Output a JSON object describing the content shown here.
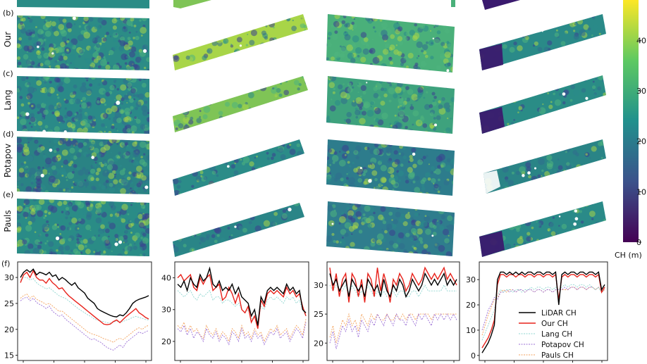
{
  "rows": [
    {
      "letter": "(b)",
      "name": "Our"
    },
    {
      "letter": "(c)",
      "name": "Lang"
    },
    {
      "letter": "(d)",
      "name": "Potapov"
    },
    {
      "letter": "(e)",
      "name": "Pauls"
    }
  ],
  "colorbar": {
    "label": "CH (m)",
    "ticks": [
      "0",
      "10",
      "20",
      "30",
      "40"
    ],
    "range": [
      0,
      48
    ],
    "colors": [
      "#440154",
      "#3b528b",
      "#21908d",
      "#5dc962",
      "#fde725"
    ]
  },
  "profile_panel_label": "(f)",
  "map_colors": {
    "low": "#3b3f8f",
    "mid": "#2a8a8a",
    "high": "#a8d548",
    "gap": "#ffffff"
  },
  "chart_data": [
    {
      "type": "line",
      "ylim": [
        14,
        33
      ],
      "yticks": [
        "15",
        "20",
        "25",
        "30"
      ],
      "x": [
        0,
        1,
        2,
        3,
        4,
        5,
        6,
        7,
        8,
        9,
        10,
        11,
        12,
        13,
        14,
        15,
        16,
        17,
        18,
        19,
        20,
        21,
        22,
        23,
        24,
        25,
        26,
        27,
        28,
        29,
        30,
        31,
        32,
        33,
        34,
        35,
        36,
        37,
        38,
        39,
        40
      ],
      "series": [
        {
          "name": "LiDAR CH",
          "color": "#000000",
          "values": [
            30,
            31,
            31.5,
            31,
            31.6,
            30.5,
            31,
            30.8,
            30.5,
            31,
            30.2,
            30.5,
            29.5,
            30,
            29.6,
            29,
            28.5,
            29,
            28,
            27.5,
            27,
            26,
            25.5,
            25,
            24,
            23.6,
            23.3,
            23,
            22.7,
            22.5,
            22.4,
            22.8,
            22.6,
            23.2,
            24,
            25,
            25.5,
            25.8,
            26,
            26.2,
            26.5
          ]
        },
        {
          "name": "Our CH",
          "color": "#e8221b",
          "values": [
            29,
            30.5,
            31,
            30,
            31.3,
            30,
            29.5,
            29.5,
            28.9,
            29.8,
            29,
            28.5,
            27.8,
            28,
            27.2,
            26.5,
            26,
            25.5,
            25,
            24.5,
            24,
            23.5,
            23,
            22.5,
            22,
            21.5,
            21,
            20.9,
            21,
            21.5,
            21.8,
            21.3,
            21.9,
            22.5,
            23,
            23.5,
            24,
            23.2,
            22.8,
            22.3,
            22
          ]
        },
        {
          "name": "Lang CH",
          "color": "#8fd6d0",
          "values": [
            29.5,
            30,
            30,
            29.5,
            29.8,
            29,
            28.5,
            28.2,
            27.8,
            28,
            27.5,
            27,
            26.5,
            26.2,
            26,
            25.5,
            25,
            24.5,
            24,
            23.6,
            23.2,
            22.8,
            22.5,
            22,
            21.8,
            21.6,
            21.5,
            21.3,
            21.2,
            21.4,
            21.6,
            21.4,
            21.5,
            21.8,
            22,
            22.3,
            22.5,
            22.3,
            22.1,
            21.9,
            21.8
          ]
        },
        {
          "name": "Potapov CH",
          "color": "#9b6fd6",
          "values": [
            25.5,
            26,
            26.2,
            25.5,
            26,
            25.2,
            24.8,
            24.5,
            24,
            24.5,
            23.5,
            23,
            22.5,
            22.8,
            22,
            21.5,
            21,
            20.5,
            20,
            19.5,
            19,
            18.5,
            18,
            18.2,
            17.8,
            17.5,
            17,
            16.5,
            16.2,
            16,
            16.5,
            17,
            16.5,
            17.5,
            18,
            18.5,
            19,
            19.5,
            19.2,
            19.5,
            19.8
          ]
        },
        {
          "name": "Pauls CH",
          "color": "#f3a25c",
          "values": [
            26,
            26.5,
            26.8,
            26,
            26.5,
            25.8,
            25.5,
            25.2,
            24.8,
            25,
            24.5,
            24,
            23.5,
            23.5,
            23,
            22.5,
            22,
            21.5,
            21,
            20.5,
            20,
            19.5,
            19.2,
            19,
            18.8,
            18.5,
            18.2,
            18,
            17.8,
            17.5,
            18,
            18.3,
            18,
            18.5,
            19,
            19.5,
            20,
            20.3,
            20,
            20.5,
            20.8
          ]
        }
      ]
    },
    {
      "type": "line",
      "ylim": [
        14,
        45
      ],
      "yticks": [
        "20",
        "30",
        "40"
      ],
      "x": [
        0,
        1,
        2,
        3,
        4,
        5,
        6,
        7,
        8,
        9,
        10,
        11,
        12,
        13,
        14,
        15,
        16,
        17,
        18,
        19,
        20,
        21,
        22,
        23,
        24,
        25,
        26,
        27,
        28,
        29,
        30,
        31,
        32,
        33,
        34,
        35,
        36,
        37,
        38,
        39,
        40
      ],
      "series": [
        {
          "name": "LiDAR CH",
          "color": "#000000",
          "values": [
            38,
            37,
            39,
            36,
            40,
            38,
            37,
            41,
            39,
            40,
            43,
            38,
            37,
            39,
            36,
            37,
            36,
            38,
            35,
            37,
            34,
            33,
            32,
            28,
            30,
            25,
            34,
            32,
            36,
            37,
            36,
            37,
            36,
            35,
            38,
            36,
            37,
            35,
            36,
            30,
            29
          ]
        },
        {
          "name": "Our CH",
          "color": "#e8221b",
          "values": [
            40,
            41,
            39,
            40,
            41,
            37,
            36,
            40,
            38,
            40,
            41,
            36,
            37,
            38,
            33,
            34,
            37,
            35,
            32,
            35,
            30,
            29,
            31,
            26,
            28,
            24,
            33,
            31,
            35,
            36,
            35,
            36,
            35,
            34,
            37,
            35,
            36,
            34,
            35,
            31,
            28
          ]
        },
        {
          "name": "Lang CH",
          "color": "#8fd6d0",
          "values": [
            36,
            35,
            34,
            35,
            36,
            34,
            33,
            35,
            34,
            35,
            36,
            33,
            34,
            34,
            32,
            33,
            33,
            32,
            31,
            32,
            30,
            29,
            30,
            27,
            28,
            26,
            31,
            30,
            33,
            34,
            33,
            34,
            33,
            32,
            34,
            33,
            34,
            32,
            33,
            30,
            28
          ]
        },
        {
          "name": "Potapov CH",
          "color": "#9b6fd6",
          "values": [
            24,
            23,
            25,
            22,
            24,
            21,
            23,
            22,
            20,
            24,
            22,
            21,
            23,
            20,
            22,
            21,
            19,
            23,
            22,
            20,
            24,
            21,
            22,
            20,
            23,
            21,
            22,
            19,
            21,
            23,
            22,
            24,
            21,
            22,
            23,
            20,
            22,
            24,
            23,
            21,
            26
          ]
        },
        {
          "name": "Pauls CH",
          "color": "#f3a25c",
          "values": [
            25,
            24,
            26,
            23,
            25,
            23,
            24,
            22,
            21,
            25,
            23,
            22,
            24,
            21,
            23,
            22,
            20,
            24,
            23,
            21,
            25,
            22,
            23,
            21,
            24,
            22,
            23,
            20,
            22,
            24,
            23,
            25,
            22,
            23,
            24,
            21,
            23,
            25,
            24,
            22,
            27
          ]
        }
      ]
    },
    {
      "type": "line",
      "ylim": [
        17,
        34
      ],
      "yticks": [
        "20",
        "25",
        "30"
      ],
      "x": [
        0,
        1,
        2,
        3,
        4,
        5,
        6,
        7,
        8,
        9,
        10,
        11,
        12,
        13,
        14,
        15,
        16,
        17,
        18,
        19,
        20,
        21,
        22,
        23,
        24,
        25,
        26,
        27,
        28,
        29,
        30,
        31,
        32,
        33,
        34,
        35,
        36,
        37,
        38,
        39,
        40
      ],
      "series": [
        {
          "name": "LiDAR CH",
          "color": "#000000",
          "values": [
            32,
            30,
            31,
            29,
            30,
            31,
            28,
            31,
            30,
            29,
            30,
            28,
            31,
            30,
            29,
            30,
            28,
            31,
            29,
            28,
            30,
            29,
            31,
            30,
            28,
            29,
            31,
            30,
            29,
            30,
            32,
            31,
            30,
            31,
            30,
            31,
            32,
            30,
            31,
            30,
            31
          ]
        },
        {
          "name": "Our CH",
          "color": "#e8221b",
          "values": [
            33,
            29,
            32,
            28,
            31,
            32,
            27,
            32,
            31,
            28,
            31,
            27,
            32,
            31,
            28,
            33,
            29,
            32,
            30,
            27,
            31,
            30,
            32,
            31,
            29,
            30,
            32,
            31,
            30,
            31,
            33,
            32,
            31,
            32,
            31,
            32,
            33,
            31,
            32,
            31,
            30
          ]
        },
        {
          "name": "Lang CH",
          "color": "#8fd6d0",
          "values": [
            30,
            29,
            30,
            29,
            29,
            30,
            28,
            30,
            29,
            28,
            29,
            28,
            30,
            29,
            28,
            29,
            28,
            29,
            28,
            28,
            29,
            28,
            29,
            29,
            28,
            28,
            29,
            29,
            28,
            29,
            30,
            29,
            29,
            29,
            29,
            29,
            30,
            29,
            29,
            29,
            29
          ]
        },
        {
          "name": "Potapov CH",
          "color": "#9b6fd6",
          "values": [
            20,
            22,
            19,
            21,
            23,
            22,
            24,
            22,
            23,
            21,
            24,
            23,
            22,
            24,
            23,
            25,
            24,
            23,
            25,
            24,
            23,
            25,
            24,
            24,
            23,
            25,
            24,
            23,
            25,
            24,
            25,
            24,
            23,
            25,
            24,
            25,
            24,
            25,
            24,
            25,
            24
          ]
        },
        {
          "name": "Pauls CH",
          "color": "#f3a25c",
          "values": [
            21,
            23,
            20,
            22,
            24,
            23,
            25,
            23,
            24,
            22,
            25,
            24,
            23,
            25,
            24,
            25,
            24,
            24,
            25,
            24,
            24,
            25,
            24,
            25,
            24,
            25,
            25,
            24,
            25,
            25,
            25,
            25,
            24,
            25,
            25,
            25,
            25,
            25,
            25,
            25,
            25
          ]
        }
      ]
    },
    {
      "type": "line",
      "ylim": [
        -2,
        37
      ],
      "yticks": [
        "0",
        "10",
        "20",
        "30"
      ],
      "legend": "bottom-right",
      "x": [
        0,
        1,
        2,
        3,
        4,
        5,
        6,
        7,
        8,
        9,
        10,
        11,
        12,
        13,
        14,
        15,
        16,
        17,
        18,
        19,
        20,
        21,
        22,
        23,
        24,
        25,
        26,
        27,
        28,
        29,
        30,
        31,
        32,
        33,
        34,
        35,
        36,
        37,
        38,
        39,
        40
      ],
      "series": [
        {
          "name": "LiDAR CH",
          "color": "#000000",
          "values": [
            1,
            3,
            5,
            8,
            12,
            30,
            33,
            33,
            32,
            33,
            32,
            33,
            32,
            33,
            32,
            33,
            33,
            32,
            33,
            33,
            32,
            33,
            33,
            32,
            33,
            20,
            32,
            33,
            32,
            33,
            33,
            32,
            33,
            33,
            32,
            33,
            33,
            32,
            33,
            26,
            28
          ]
        },
        {
          "name": "Our CH",
          "color": "#e8221b",
          "values": [
            3,
            5,
            7,
            10,
            14,
            28,
            32,
            32,
            31,
            32,
            32,
            31,
            32,
            32,
            31,
            32,
            32,
            31,
            32,
            32,
            31,
            32,
            32,
            31,
            32,
            22,
            31,
            32,
            31,
            32,
            32,
            31,
            32,
            32,
            31,
            32,
            32,
            31,
            32,
            25,
            27
          ]
        },
        {
          "name": "Lang CH",
          "color": "#8fd6d0",
          "values": [
            6,
            9,
            12,
            15,
            18,
            24,
            26,
            25,
            26,
            26,
            25,
            26,
            26,
            25,
            26,
            26,
            27,
            26,
            27,
            27,
            26,
            27,
            27,
            26,
            27,
            26,
            27,
            28,
            27,
            28,
            28,
            27,
            28,
            28,
            27,
            28,
            27,
            26,
            27,
            25,
            26
          ]
        },
        {
          "name": "Potapov CH",
          "color": "#9b6fd6",
          "values": [
            10,
            14,
            18,
            20,
            23,
            22,
            25,
            25,
            26,
            25,
            26,
            25,
            26,
            26,
            25,
            26,
            26,
            25,
            26,
            26,
            25,
            26,
            26,
            25,
            26,
            26,
            26,
            27,
            26,
            27,
            27,
            26,
            27,
            27,
            26,
            27,
            27,
            26,
            27,
            25,
            26
          ]
        },
        {
          "name": "Pauls CH",
          "color": "#f3a25c",
          "values": [
            8,
            12,
            16,
            19,
            22,
            23,
            25,
            26,
            25,
            26,
            26,
            25,
            26,
            26,
            25,
            26,
            26,
            25,
            26,
            26,
            25,
            26,
            26,
            25,
            26,
            26,
            26,
            26,
            26,
            27,
            27,
            26,
            27,
            27,
            26,
            27,
            27,
            26,
            27,
            25,
            26
          ]
        }
      ]
    }
  ]
}
